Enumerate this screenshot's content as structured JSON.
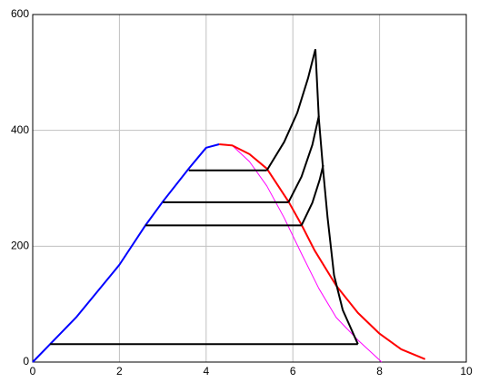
{
  "chart_data": {
    "type": "line",
    "xlim": [
      0,
      10
    ],
    "xticks": [
      0,
      2,
      4,
      6,
      8,
      10
    ],
    "ylim": [
      0,
      600
    ],
    "yticks": [
      0,
      200,
      400,
      600
    ],
    "grid": true,
    "series": [
      {
        "color": "#0000ff",
        "linewidth": 2,
        "x": [
          0,
          1,
          2,
          2.6,
          3,
          3.6,
          4,
          4.3
        ],
        "values": [
          0,
          77,
          168,
          236,
          277,
          334,
          370,
          376
        ]
      },
      {
        "color": "#ff00ff",
        "linewidth": 1,
        "x": [
          4.4,
          4.6,
          5,
          5.4,
          5.8,
          6.2,
          6.6,
          7,
          7.5,
          8.05
        ],
        "values": [
          376,
          374,
          346,
          304,
          249,
          187,
          127,
          77,
          38,
          0
        ]
      },
      {
        "color": "#ff0000",
        "linewidth": 2,
        "x": [
          4.3,
          4.6,
          5,
          5.4,
          5.9,
          6.2,
          6.5,
          7,
          7.5,
          8,
          8.5,
          9.05
        ],
        "values": [
          376,
          374,
          359,
          334,
          277,
          237,
          193,
          132,
          85,
          49,
          22,
          5
        ]
      },
      {
        "color": "#000000",
        "linewidth": 2,
        "x": [
          3.6,
          5.4
        ],
        "values": [
          331,
          331
        ]
      },
      {
        "color": "#000000",
        "linewidth": 2,
        "x": [
          3.0,
          5.9
        ],
        "values": [
          276,
          276
        ]
      },
      {
        "color": "#000000",
        "linewidth": 2,
        "x": [
          2.6,
          6.2
        ],
        "values": [
          236,
          236
        ]
      },
      {
        "color": "#000000",
        "linewidth": 2,
        "x": [
          0.4,
          7.5
        ],
        "values": [
          31,
          31
        ]
      },
      {
        "color": "#000000",
        "linewidth": 2,
        "x": [
          5.4,
          5.8,
          6.1,
          6.35,
          6.52
        ],
        "values": [
          331,
          380,
          430,
          490,
          540
        ]
      },
      {
        "color": "#000000",
        "linewidth": 2,
        "x": [
          5.9,
          6.2,
          6.45,
          6.6
        ],
        "values": [
          276,
          320,
          375,
          425
        ]
      },
      {
        "color": "#000000",
        "linewidth": 2,
        "x": [
          6.2,
          6.45,
          6.62,
          6.7
        ],
        "values": [
          236,
          275,
          315,
          340
        ]
      },
      {
        "color": "#000000",
        "linewidth": 2,
        "x": [
          6.52,
          6.6,
          6.7,
          6.8,
          6.95,
          7.15,
          7.5
        ],
        "values": [
          540,
          420,
          330,
          250,
          150,
          90,
          31
        ]
      }
    ]
  }
}
